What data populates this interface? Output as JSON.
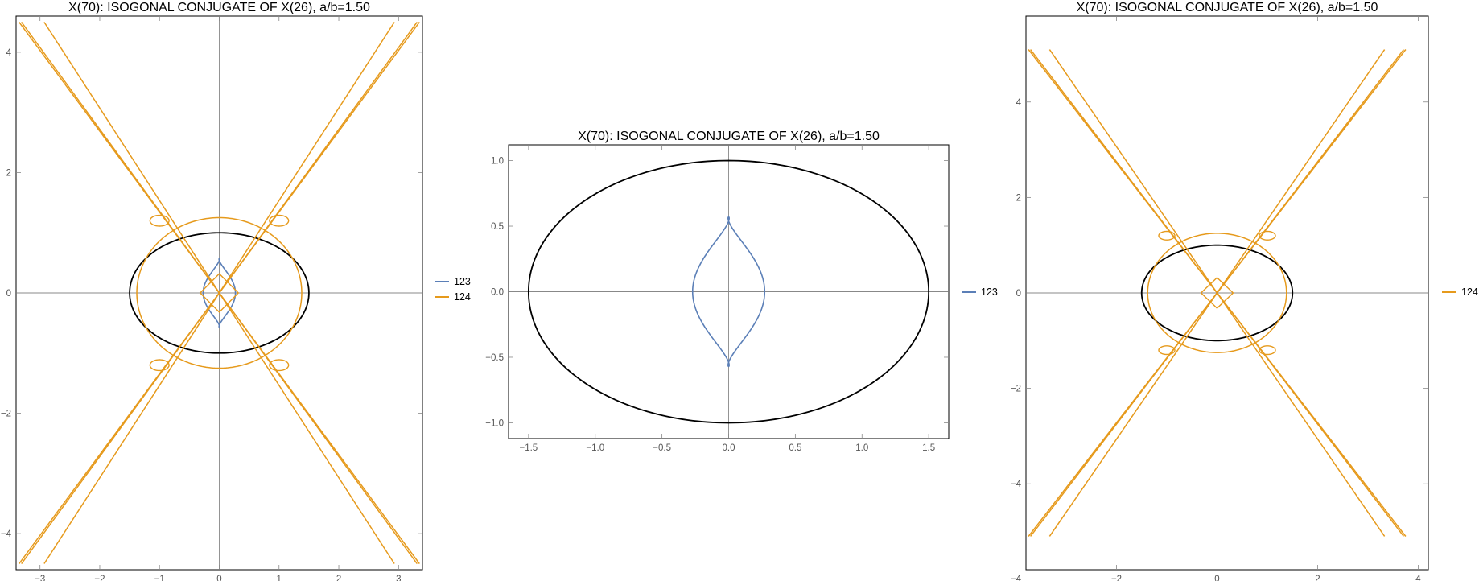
{
  "colors": {
    "series_123": "#5b7fb7",
    "series_124": "#e69a1c",
    "ellipse": "#000000"
  },
  "chart_data": [
    {
      "type": "line",
      "title": "X(70): ISOGONAL CONJUGATE OF X(26), a/b=1.50",
      "xlim": [
        -3.4,
        3.4
      ],
      "ylim": [
        -4.6,
        4.6
      ],
      "x_ticks": [
        -3,
        -2,
        -1,
        0,
        1,
        2,
        3
      ],
      "x_tick_labels": [
        "−3",
        "−2",
        "−1",
        "0",
        "1",
        "2",
        "3"
      ],
      "y_ticks": [
        -4,
        -2,
        0,
        2,
        4
      ],
      "y_tick_labels": [
        "−4",
        "−2",
        "0",
        "2",
        "4"
      ],
      "ellipse": {
        "a": 1.5,
        "b": 1.0
      },
      "legend": [
        "123",
        "124"
      ],
      "legend_position": "right",
      "series": [
        {
          "name": "123",
          "shape": "figure-eight loops",
          "x_extent": [
            -0.27,
            0.27
          ],
          "y_extent": [
            -0.57,
            0.57
          ]
        },
        {
          "name": "124",
          "shape": "X-shaped asymptotic branches with side loops",
          "x_extent": [
            -3.35,
            3.35
          ],
          "y_extent": [
            -4.5,
            4.5
          ]
        }
      ]
    },
    {
      "type": "line",
      "title": "X(70): ISOGONAL CONJUGATE OF X(26), a/b=1.50",
      "xlim": [
        -1.65,
        1.65
      ],
      "ylim": [
        -1.12,
        1.12
      ],
      "x_ticks": [
        -1.5,
        -1.0,
        -0.5,
        0.0,
        0.5,
        1.0,
        1.5
      ],
      "x_tick_labels": [
        "−1.5",
        "−1.0",
        "−0.5",
        "0.0",
        "0.5",
        "1.0",
        "1.5"
      ],
      "y_ticks": [
        -1.0,
        -0.5,
        0.0,
        0.5,
        1.0
      ],
      "y_tick_labels": [
        "−1.0",
        "−0.5",
        "0.0",
        "0.5",
        "1.0"
      ],
      "ellipse": {
        "a": 1.5,
        "b": 1.0
      },
      "legend": [
        "123"
      ],
      "legend_position": "right",
      "series": [
        {
          "name": "123",
          "shape": "figure-eight loops",
          "x_extent": [
            -0.27,
            0.27
          ],
          "y_extent": [
            -0.57,
            0.57
          ]
        }
      ]
    },
    {
      "type": "line",
      "title": "X(70): ISOGONAL CONJUGATE OF X(26), a/b=1.50",
      "xlim": [
        -3.8,
        4.2
      ],
      "ylim": [
        -5.8,
        5.8
      ],
      "x_ticks": [
        -4,
        -2,
        0,
        2,
        4
      ],
      "x_tick_labels": [
        "−4",
        "−2",
        "0",
        "2",
        "4"
      ],
      "y_ticks": [
        -4,
        -2,
        0,
        2,
        4
      ],
      "y_tick_labels": [
        "−4",
        "−2",
        "0",
        "2",
        "4"
      ],
      "ellipse": {
        "a": 1.5,
        "b": 1.0
      },
      "legend": [
        "124"
      ],
      "legend_position": "right",
      "series": [
        {
          "name": "124",
          "shape": "X-shaped asymptotic branches with side loops",
          "x_extent": [
            -3.75,
            3.75
          ],
          "y_extent": [
            -5.1,
            5.1
          ]
        }
      ]
    }
  ]
}
